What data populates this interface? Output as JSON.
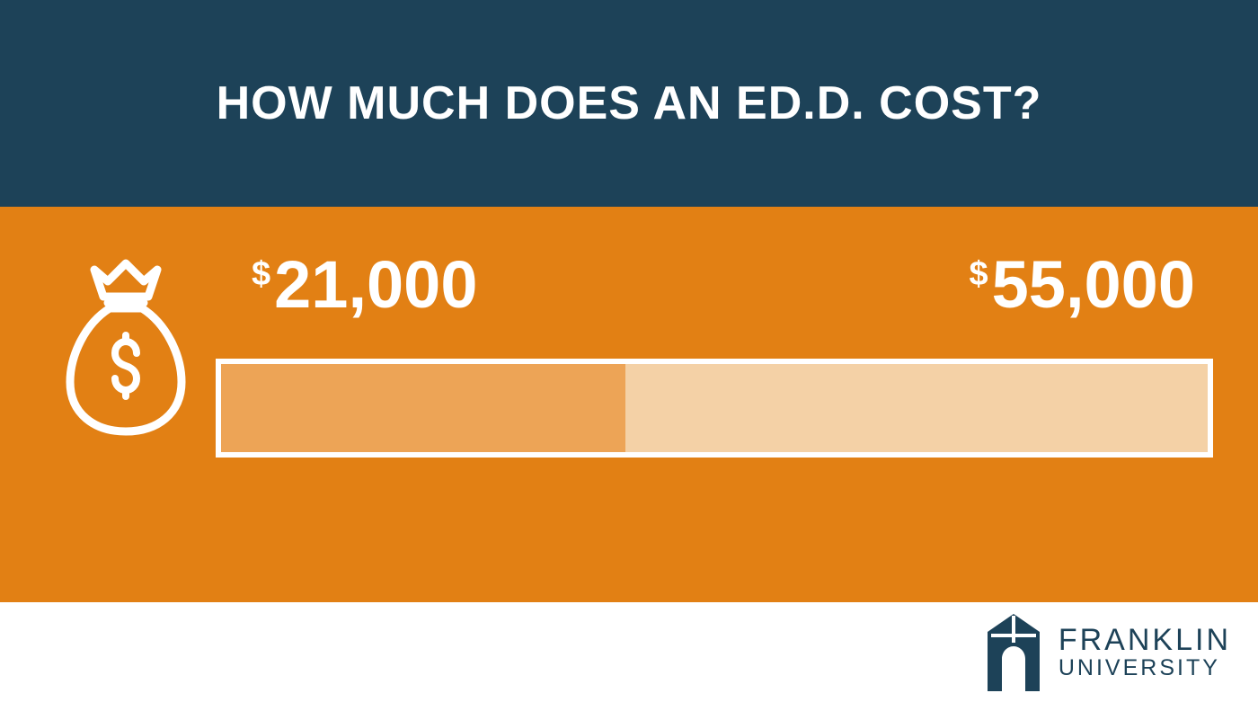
{
  "header": {
    "title": "HOW MUCH DOES AN ED.D. COST?",
    "background_color": "#1d4258",
    "title_color": "#ffffff",
    "title_fontsize": 52
  },
  "main": {
    "background_color": "#e28014",
    "icon": {
      "name": "money-bag",
      "stroke_color": "#ffffff",
      "stroke_width": 9
    },
    "range": {
      "currency": "$",
      "low_value": "21,000",
      "high_value": "55,000",
      "text_color": "#ffffff",
      "value_fontsize": 74,
      "currency_fontsize": 38
    },
    "bar": {
      "type": "range-bar",
      "border_color": "#ffffff",
      "border_width": 6,
      "segments": [
        {
          "color": "#eda456",
          "width_percent": 41
        },
        {
          "color": "#f4d1a6",
          "width_percent": 59
        }
      ]
    }
  },
  "footer": {
    "logo": {
      "mark_color": "#1d4258",
      "text_color": "#1d4258",
      "line1": "FRANKLIN",
      "line2": "UNIVERSITY"
    }
  }
}
